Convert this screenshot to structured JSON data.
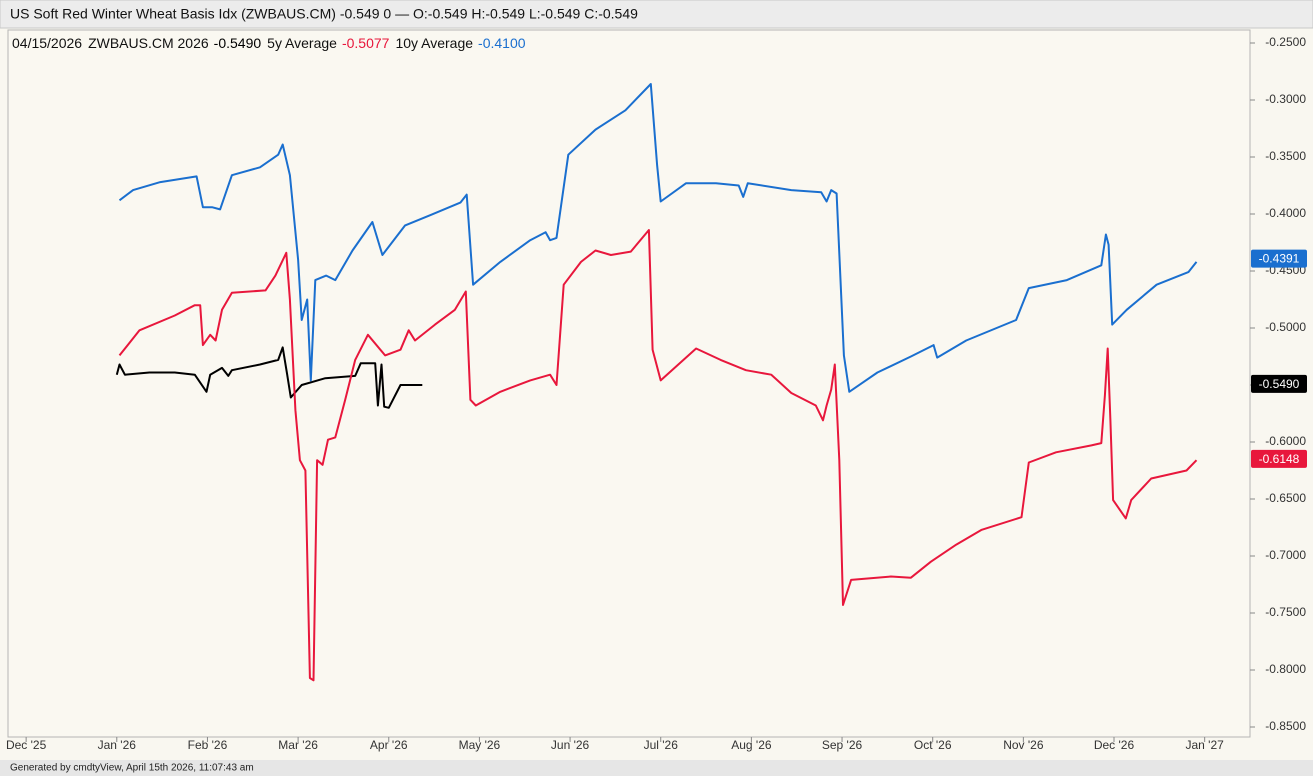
{
  "chart_data": {
    "type": "line",
    "title": "US Soft Red Winter Wheat Basis Idx (ZWBAUS.CM) -0.549 0 — O:-0.549 H:-0.549 L:-0.549 C:-0.549",
    "legend_date": "04/15/2026",
    "footer": "Generated by cmdtyView, April 15th 2026, 11:07:43 am",
    "xlim": [
      -1.2,
      12.5
    ],
    "xticks": [
      {
        "value": -1,
        "label": "Dec '25"
      },
      {
        "value": 0,
        "label": "Jan '26"
      },
      {
        "value": 1,
        "label": "Feb '26"
      },
      {
        "value": 2,
        "label": "Mar '26"
      },
      {
        "value": 3,
        "label": "Apr '26"
      },
      {
        "value": 4,
        "label": "May '26"
      },
      {
        "value": 5,
        "label": "Jun '26"
      },
      {
        "value": 6,
        "label": "Jul '26"
      },
      {
        "value": 7,
        "label": "Aug '26"
      },
      {
        "value": 8,
        "label": "Sep '26"
      },
      {
        "value": 9,
        "label": "Oct '26"
      },
      {
        "value": 10,
        "label": "Nov '26"
      },
      {
        "value": 11,
        "label": "Dec '26"
      },
      {
        "value": 12,
        "label": "Jan '27"
      }
    ],
    "ylim": [
      -0.85,
      -0.25
    ],
    "yticks": [
      {
        "value": -0.25,
        "label": "-0.2500"
      },
      {
        "value": -0.3,
        "label": "-0.3000"
      },
      {
        "value": -0.35,
        "label": "-0.3500"
      },
      {
        "value": -0.4,
        "label": "-0.4000"
      },
      {
        "value": -0.45,
        "label": "-0.4500"
      },
      {
        "value": -0.5,
        "label": "-0.5000"
      },
      {
        "value": -0.55,
        "label": "-0.5500"
      },
      {
        "value": -0.6,
        "label": "-0.6000"
      },
      {
        "value": -0.65,
        "label": "-0.6500"
      },
      {
        "value": -0.7,
        "label": "-0.7000"
      },
      {
        "value": -0.75,
        "label": "-0.7500"
      },
      {
        "value": -0.8,
        "label": "-0.8000"
      },
      {
        "value": -0.85,
        "label": "-0.8500"
      }
    ],
    "grid": false,
    "series": [
      {
        "name": "ZWBAUS.CM 2026",
        "legend_value": "-0.5490",
        "color": "#000000",
        "last_value": {
          "value": -0.549,
          "label": "-0.5490"
        },
        "x": [
          0.0,
          0.03,
          0.09,
          0.36,
          0.64,
          0.86,
          0.99,
          1.03,
          1.16,
          1.23,
          1.27,
          1.58,
          1.78,
          1.83,
          1.88,
          1.92,
          2.04,
          2.3,
          2.63,
          2.69,
          2.85,
          2.88,
          2.92,
          2.95,
          3.0,
          3.13,
          3.37
        ],
        "values": [
          -0.541,
          -0.532,
          -0.541,
          -0.539,
          -0.539,
          -0.541,
          -0.556,
          -0.541,
          -0.535,
          -0.542,
          -0.537,
          -0.532,
          -0.528,
          -0.517,
          -0.541,
          -0.561,
          -0.55,
          -0.544,
          -0.542,
          -0.531,
          -0.531,
          -0.568,
          -0.532,
          -0.569,
          -0.57,
          -0.55,
          -0.55
        ]
      },
      {
        "name": "5y Average",
        "legend_value": "-0.5077",
        "color": "#e8173c",
        "last_value": -0.6148,
        "x": [
          0.03,
          0.25,
          0.64,
          0.86,
          0.92,
          0.95,
          1.03,
          1.09,
          1.16,
          1.27,
          1.64,
          1.75,
          1.87,
          1.91,
          1.97,
          2.02,
          2.08,
          2.13,
          2.17,
          2.21,
          2.27,
          2.33,
          2.41,
          2.52,
          2.63,
          2.77,
          2.96,
          3.13,
          3.22,
          3.29,
          3.51,
          3.73,
          3.85,
          3.9,
          3.96,
          4.23,
          4.56,
          4.78,
          4.85,
          4.93,
          5.12,
          5.28,
          5.45,
          5.67,
          5.87,
          5.91,
          6.0,
          6.39,
          6.66,
          6.94,
          7.22,
          7.44,
          7.71,
          7.79,
          7.83,
          7.88,
          7.92,
          7.97,
          8.01,
          8.1,
          8.54,
          8.76,
          8.98,
          9.26,
          9.54,
          9.98,
          10.06,
          10.36,
          10.75,
          10.86,
          10.9,
          10.93,
          10.96,
          10.99,
          11.13,
          11.19,
          11.41,
          11.8,
          11.91
        ],
        "values": [
          -0.524,
          -0.502,
          -0.489,
          -0.48,
          -0.48,
          -0.515,
          -0.506,
          -0.511,
          -0.484,
          -0.469,
          -0.467,
          -0.454,
          -0.434,
          -0.475,
          -0.572,
          -0.616,
          -0.625,
          -0.807,
          -0.809,
          -0.616,
          -0.62,
          -0.598,
          -0.596,
          -0.563,
          -0.528,
          -0.506,
          -0.524,
          -0.519,
          -0.502,
          -0.511,
          -0.497,
          -0.484,
          -0.468,
          -0.563,
          -0.568,
          -0.556,
          -0.546,
          -0.541,
          -0.55,
          -0.462,
          -0.442,
          -0.432,
          -0.436,
          -0.433,
          -0.414,
          -0.519,
          -0.546,
          -0.518,
          -0.528,
          -0.537,
          -0.541,
          -0.557,
          -0.568,
          -0.581,
          -0.568,
          -0.554,
          -0.532,
          -0.616,
          -0.743,
          -0.721,
          -0.718,
          -0.719,
          -0.705,
          -0.69,
          -0.677,
          -0.666,
          -0.618,
          -0.609,
          -0.603,
          -0.601,
          -0.559,
          -0.518,
          -0.581,
          -0.651,
          -0.667,
          -0.651,
          -0.632,
          -0.625,
          -0.616
        ]
      },
      {
        "name": "10y Average",
        "legend_value": "-0.4100",
        "color": "#1a6fcf",
        "last_value": -0.4391,
        "x": [
          0.03,
          0.18,
          0.48,
          0.88,
          0.95,
          1.05,
          1.14,
          1.27,
          1.58,
          1.78,
          1.83,
          1.91,
          2.0,
          2.04,
          2.1,
          2.14,
          2.19,
          2.31,
          2.41,
          2.6,
          2.82,
          2.93,
          3.18,
          3.46,
          3.79,
          3.86,
          3.93,
          4.23,
          4.56,
          4.73,
          4.78,
          4.85,
          4.98,
          5.28,
          5.61,
          5.89,
          5.96,
          6.0,
          6.28,
          6.61,
          6.86,
          6.91,
          6.96,
          7.44,
          7.77,
          7.83,
          7.88,
          7.94,
          8.02,
          8.08,
          8.39,
          8.76,
          9.01,
          9.05,
          9.37,
          9.92,
          10.06,
          10.48,
          10.86,
          10.91,
          10.94,
          10.98,
          11.14,
          11.47,
          11.82,
          11.91
        ],
        "values": [
          -0.388,
          -0.379,
          -0.372,
          -0.367,
          -0.394,
          -0.394,
          -0.396,
          -0.366,
          -0.359,
          -0.348,
          -0.339,
          -0.366,
          -0.44,
          -0.493,
          -0.475,
          -0.546,
          -0.458,
          -0.454,
          -0.458,
          -0.432,
          -0.407,
          -0.436,
          -0.41,
          -0.401,
          -0.39,
          -0.383,
          -0.462,
          -0.442,
          -0.423,
          -0.416,
          -0.423,
          -0.421,
          -0.348,
          -0.326,
          -0.309,
          -0.286,
          -0.357,
          -0.389,
          -0.373,
          -0.373,
          -0.375,
          -0.385,
          -0.373,
          -0.379,
          -0.381,
          -0.389,
          -0.379,
          -0.382,
          -0.524,
          -0.556,
          -0.539,
          -0.525,
          -0.515,
          -0.526,
          -0.511,
          -0.493,
          -0.465,
          -0.458,
          -0.445,
          -0.418,
          -0.427,
          -0.497,
          -0.484,
          -0.462,
          -0.451,
          -0.442
        ]
      }
    ]
  }
}
